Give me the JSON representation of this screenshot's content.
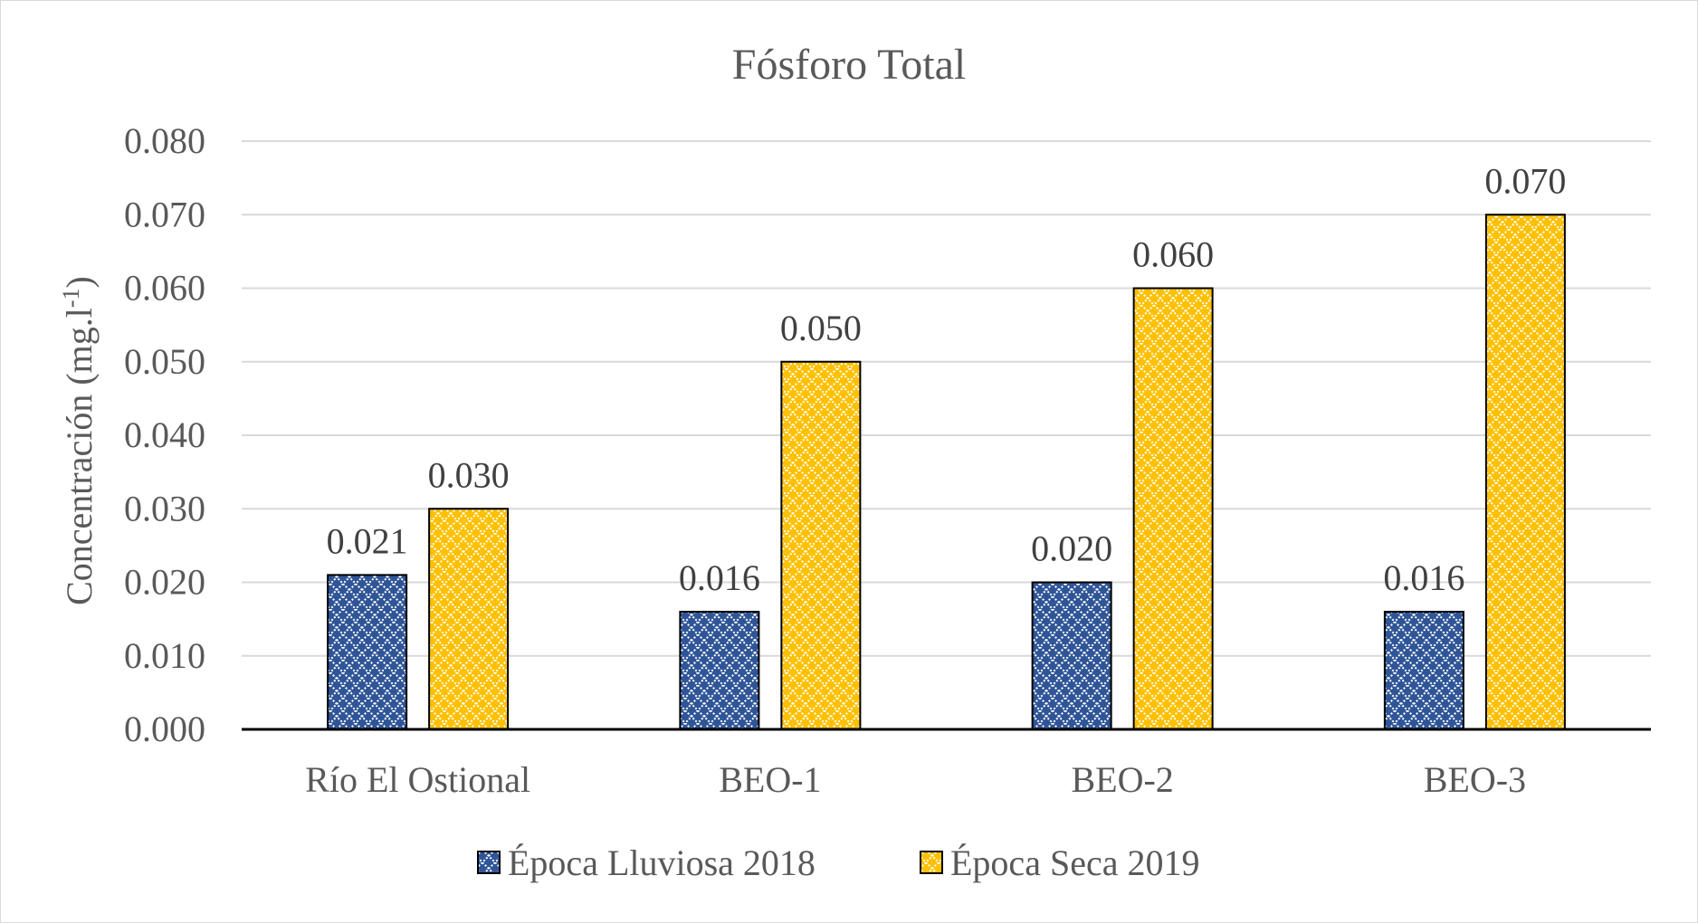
{
  "chart_data": {
    "type": "bar",
    "title": "Fósforo Total",
    "ylabel": "Concentración (mg.l",
    "ylabel_superscript": "-1",
    "ylabel_close": ")",
    "xlabel": "",
    "ylim": [
      0,
      0.08
    ],
    "yticks": [
      "0.000",
      "0.010",
      "0.020",
      "0.030",
      "0.040",
      "0.050",
      "0.060",
      "0.070",
      "0.080"
    ],
    "ytick_values": [
      0,
      0.01,
      0.02,
      0.03,
      0.04,
      0.05,
      0.06,
      0.07,
      0.08
    ],
    "categories": [
      "Río El Ostional",
      "BEO-1",
      "BEO-2",
      "BEO-3"
    ],
    "series": [
      {
        "name": "Época Lluviosa 2018",
        "values": [
          0.021,
          0.016,
          0.02,
          0.016
        ],
        "labels": [
          "0.021",
          "0.016",
          "0.020",
          "0.016"
        ],
        "color": "#2f5597",
        "pattern": "diamond-lattice"
      },
      {
        "name": "Época Seca 2019",
        "values": [
          0.03,
          0.05,
          0.06,
          0.07
        ],
        "labels": [
          "0.030",
          "0.050",
          "0.060",
          "0.070"
        ],
        "color": "#ffc000",
        "pattern": "diamond-lattice"
      }
    ],
    "grid": true,
    "legend_position": "bottom"
  }
}
